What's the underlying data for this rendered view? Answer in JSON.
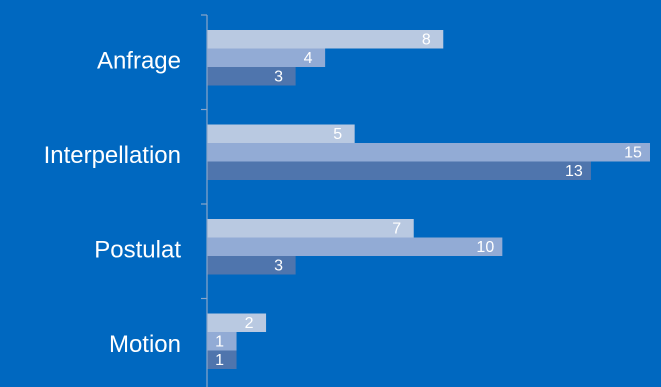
{
  "chart_data": {
    "type": "bar",
    "orientation": "horizontal",
    "categories": [
      "Anfrage",
      "Interpellation",
      "Postulat",
      "Motion"
    ],
    "series": [
      {
        "values": [
          8,
          5,
          7,
          2
        ],
        "color": "#b9c9e1"
      },
      {
        "values": [
          4,
          15,
          10,
          1
        ],
        "color": "#92abd5"
      },
      {
        "values": [
          3,
          13,
          3,
          1
        ],
        "color": "#4f75ad"
      }
    ],
    "xlim": [
      0,
      15
    ],
    "grid": false,
    "legend": "none",
    "background": "#0068c0"
  }
}
